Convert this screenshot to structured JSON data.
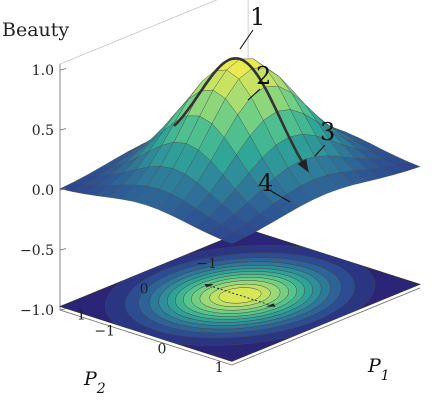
{
  "chart_data": {
    "type": "surface3d",
    "zlabel": "Beauty",
    "xlabel": "P",
    "xlabel_sub": "1",
    "ylabel": "P",
    "ylabel_sub": "2",
    "z_ticks": [
      "1.0",
      "0.5",
      "0.0",
      "−0.5",
      "−1.0"
    ],
    "z_tick_values": [
      1.0,
      0.5,
      0.0,
      -0.5,
      -1.0
    ],
    "p1_ticks": [
      "1",
      "0",
      "−1"
    ],
    "p1_tick_values": [
      1,
      0,
      -1
    ],
    "p2_ticks": [
      "1",
      "0",
      "−1"
    ],
    "p2_tick_values": [
      1,
      0,
      -1
    ],
    "xlim": [
      -1.5,
      1.5
    ],
    "ylim": [
      -1.5,
      1.5
    ],
    "zlim": [
      -1.0,
      1.05
    ],
    "surface_function": "Beauty = exp(-(P1^2 + P2^2))",
    "peak": {
      "p1": 0,
      "p2": 0,
      "beauty": 1.0
    },
    "contour_floor": true,
    "annotations": [
      "1",
      "2",
      "3",
      "4"
    ],
    "colormap": [
      "#2a1f72",
      "#2d4f93",
      "#2e7d9b",
      "#2fa798",
      "#5dc98b",
      "#a8dd72",
      "#f2ec4a"
    ]
  }
}
